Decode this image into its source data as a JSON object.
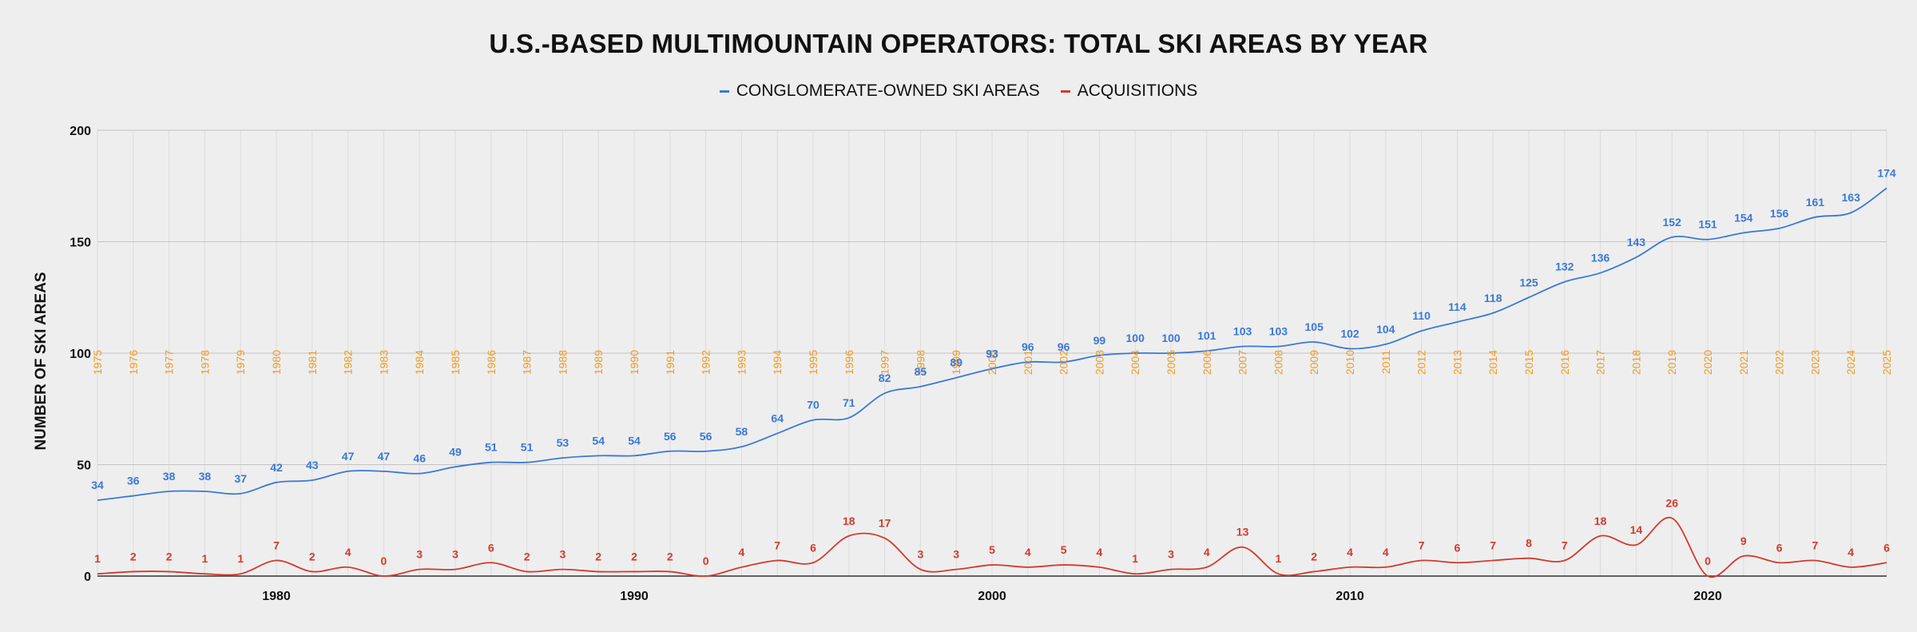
{
  "chart_data": {
    "type": "line",
    "title": "U.S.-BASED MULTIMOUNTAIN OPERATORS: TOTAL SKI AREAS BY YEAR",
    "xlabel": "",
    "ylabel": "NUMBER OF SKI AREAS",
    "ylim": [
      0,
      200
    ],
    "yticks": [
      "0",
      "50",
      "100",
      "150",
      "200"
    ],
    "xlim": [
      1975,
      2025
    ],
    "xticks": [
      "1980",
      "1990",
      "2000",
      "2010",
      "2020"
    ],
    "grid": true,
    "legend_position": "top-center",
    "x": [
      1975,
      1976,
      1977,
      1978,
      1979,
      1980,
      1981,
      1982,
      1983,
      1984,
      1985,
      1986,
      1987,
      1988,
      1989,
      1990,
      1991,
      1992,
      1993,
      1994,
      1995,
      1996,
      1997,
      1998,
      1999,
      2000,
      2001,
      2002,
      2003,
      2004,
      2005,
      2006,
      2007,
      2008,
      2009,
      2010,
      2011,
      2012,
      2013,
      2014,
      2015,
      2016,
      2017,
      2018,
      2019,
      2020,
      2021,
      2022,
      2023,
      2024,
      2025
    ],
    "year_labels": [
      "1975",
      "1976",
      "1977",
      "1978",
      "1979",
      "1980",
      "1981",
      "1982",
      "1983",
      "1984",
      "1985",
      "1986",
      "1987",
      "1988",
      "1989",
      "1990",
      "1991",
      "1992",
      "1993",
      "1994",
      "1995",
      "1996",
      "1997",
      "1998",
      "1999",
      "2000",
      "2001",
      "2002",
      "2003",
      "2004",
      "2005",
      "2006",
      "2007",
      "2008",
      "2009",
      "2010",
      "2011",
      "2012",
      "2013",
      "2014",
      "2015",
      "2016",
      "2017",
      "2018",
      "2019",
      "2020",
      "2021",
      "2022",
      "2023",
      "2024",
      "2025"
    ],
    "series": [
      {
        "name": "CONGLOMERATE-OWNED SKI AREAS",
        "color": "#3a78d8",
        "values": [
          34,
          36,
          38,
          38,
          37,
          42,
          43,
          47,
          47,
          46,
          49,
          51,
          51,
          53,
          54,
          54,
          56,
          56,
          58,
          64,
          70,
          71,
          82,
          85,
          89,
          93,
          96,
          96,
          99,
          100,
          100,
          101,
          103,
          103,
          105,
          102,
          104,
          110,
          114,
          118,
          125,
          132,
          136,
          143,
          152,
          151,
          154,
          156,
          161,
          163,
          174
        ]
      },
      {
        "name": "ACQUISITIONS",
        "color": "#d23a2e",
        "values": [
          1,
          2,
          2,
          1,
          1,
          7,
          2,
          4,
          0,
          3,
          3,
          6,
          2,
          3,
          2,
          2,
          2,
          0,
          4,
          7,
          6,
          18,
          17,
          3,
          3,
          5,
          4,
          5,
          4,
          1,
          3,
          4,
          13,
          1,
          2,
          4,
          4,
          7,
          6,
          7,
          8,
          7,
          18,
          14,
          26,
          0,
          9,
          6,
          7,
          4,
          6
        ]
      }
    ],
    "year_label_color": "#f29b1d"
  }
}
